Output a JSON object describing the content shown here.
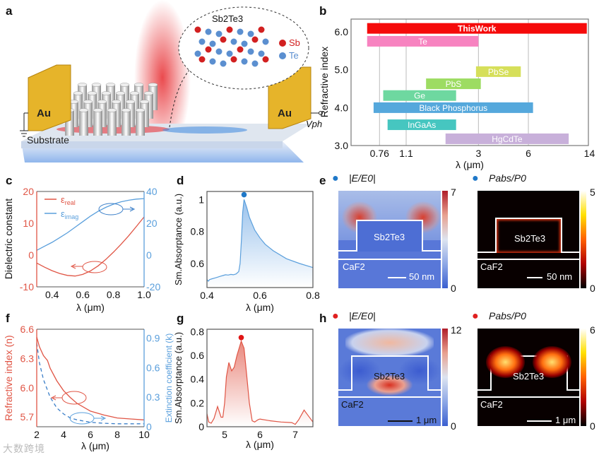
{
  "panels": {
    "a": "a",
    "b": "b",
    "c": "c",
    "d": "d",
    "e": "e",
    "f": "f",
    "g": "g",
    "h": "h"
  },
  "panel_a": {
    "crystal_label": "Sb2Te3",
    "legend_sb": "Sb",
    "legend_te": "Te",
    "electrode_left": "Au",
    "electrode_right": "Au",
    "substrate": "Substrate",
    "vph": "Vph",
    "colors": {
      "sb": "#d22020",
      "te": "#5b8fd0",
      "au": "#e0b020"
    }
  },
  "panel_e": {
    "left_title": "|E/E0|",
    "right_title": "Pabs/P0",
    "left_cbar": [
      "7",
      "0"
    ],
    "right_cbar": [
      "5",
      "0"
    ],
    "material": "Sb2Te3",
    "substrate": "CaF2",
    "scale": "50 nm",
    "dot_color": "#1f78c8"
  },
  "panel_h": {
    "left_title": "|E/E0|",
    "right_title": "Pabs/P0",
    "left_cbar": [
      "12",
      "0"
    ],
    "right_cbar": [
      "6",
      "0"
    ],
    "material": "Sb2Te3",
    "substrate": "CaF2",
    "scale": "1 μm",
    "dot_color": "#e02020"
  },
  "watermark": "大数跨境",
  "chart_data": [
    {
      "id": "b",
      "type": "bar",
      "orientation": "horizontal-range",
      "xlabel": "λ (μm)",
      "ylabel": "Refractive index",
      "xscale": "log",
      "xlim": [
        0.51,
        14
      ],
      "ylim": [
        3.0,
        6.3
      ],
      "xticks": [
        "0.76",
        "1.1",
        "3",
        "6",
        "14"
      ],
      "xtick_values": [
        0.76,
        1.1,
        3,
        6,
        14
      ],
      "yticks": [
        "3.0",
        "4.0",
        "5.0",
        "6.0"
      ],
      "ytick_values": [
        3,
        4,
        5,
        6
      ],
      "grid": "vertical",
      "bars": [
        {
          "name": "ThisWork",
          "lambda": [
            0.64,
            13.5
          ],
          "n": 6.09,
          "color": "#f50a0a"
        },
        {
          "name": "Te",
          "lambda": [
            0.64,
            3.0
          ],
          "n": 5.75,
          "color": "#f783c0"
        },
        {
          "name": "PbSe",
          "lambda": [
            2.9,
            5.4
          ],
          "n": 4.95,
          "color": "#d6df5a"
        },
        {
          "name": "PbS",
          "lambda": [
            1.45,
            3.1
          ],
          "n": 4.63,
          "color": "#9ddc62"
        },
        {
          "name": "Ge",
          "lambda": [
            0.8,
            2.2
          ],
          "n": 4.32,
          "color": "#6ed8a0"
        },
        {
          "name": "Black Phosphorus",
          "lambda": [
            0.7,
            6.4
          ],
          "n": 4.0,
          "color": "#55a8dc"
        },
        {
          "name": "InGaAs",
          "lambda": [
            0.85,
            2.2
          ],
          "n": 3.55,
          "color": "#46c6c0"
        },
        {
          "name": "HgCdTe",
          "lambda": [
            1.9,
            10.5
          ],
          "n": 3.18,
          "color": "#c8b0da"
        }
      ]
    },
    {
      "id": "c",
      "type": "line",
      "xlabel": "λ (μm)",
      "ylabel": "Dielectric constant",
      "xlim": [
        0.3,
        1.0
      ],
      "ylim": [
        -10,
        20
      ],
      "y2lim": [
        -20,
        40
      ],
      "xticks": [
        "0.4",
        "0.6",
        "0.8",
        "1.0"
      ],
      "yticks": [
        "-10",
        "0",
        "10",
        "20"
      ],
      "y2ticks": [
        "-20",
        "0",
        "20",
        "40"
      ],
      "series": [
        {
          "name": "ε",
          "sub": "real",
          "axis": "left",
          "color": "#e05545",
          "x": [
            0.3,
            0.35,
            0.4,
            0.45,
            0.5,
            0.55,
            0.6,
            0.65,
            0.7,
            0.75,
            0.8,
            0.85,
            0.9,
            0.95,
            1.0
          ],
          "y": [
            -2.5,
            -3.8,
            -4.9,
            -5.8,
            -6.4,
            -6.6,
            -6.1,
            -5.0,
            -3.4,
            -1.4,
            0.9,
            3.4,
            6.1,
            9.0,
            12.0
          ]
        },
        {
          "name": "ε",
          "sub": "imag",
          "axis": "right",
          "color": "#5a9fdc",
          "x": [
            0.3,
            0.35,
            0.4,
            0.45,
            0.5,
            0.55,
            0.6,
            0.65,
            0.7,
            0.75,
            0.8,
            0.85,
            0.9,
            0.95,
            1.0
          ],
          "y": [
            3,
            5.5,
            8,
            11,
            14,
            17.5,
            21,
            24.5,
            27.5,
            30,
            32,
            33.5,
            34.5,
            35.2,
            35.5
          ]
        }
      ]
    },
    {
      "id": "d",
      "type": "area",
      "xlabel": "λ (μm)",
      "ylabel": "Sm.Absorptance (a.u.)",
      "xlim": [
        0.4,
        0.8
      ],
      "ylim": [
        0.45,
        1.05
      ],
      "xticks": [
        "0.4",
        "0.6",
        "0.8"
      ],
      "yticks": [
        "0.6",
        "0.8",
        "1"
      ],
      "series": [
        {
          "name": "absorptance",
          "color": "#5a9fdc",
          "x": [
            0.4,
            0.405,
            0.41,
            0.42,
            0.43,
            0.44,
            0.45,
            0.46,
            0.47,
            0.48,
            0.49,
            0.5,
            0.51,
            0.52,
            0.525,
            0.53,
            0.535,
            0.54,
            0.55,
            0.56,
            0.58,
            0.6,
            0.62,
            0.65,
            0.7,
            0.75,
            0.8
          ],
          "y": [
            0.5,
            0.49,
            0.5,
            0.505,
            0.51,
            0.515,
            0.52,
            0.525,
            0.53,
            0.528,
            0.532,
            0.53,
            0.535,
            0.55,
            0.6,
            0.75,
            0.92,
            1.0,
            0.95,
            0.89,
            0.81,
            0.76,
            0.72,
            0.68,
            0.63,
            0.6,
            0.575
          ]
        }
      ],
      "marker": {
        "x": 0.54,
        "y": 1.03,
        "color": "#1f78c8"
      }
    },
    {
      "id": "f",
      "type": "line",
      "xlabel": "λ (μm)",
      "ylabel": "Refractive index (n)",
      "y2label": "Extinction coefficient (k)",
      "xlim": [
        2,
        10
      ],
      "ylim": [
        5.6,
        6.6
      ],
      "y2lim": [
        0,
        0.99
      ],
      "xticks": [
        "2",
        "4",
        "6",
        "8",
        "10"
      ],
      "yticks": [
        "5.7",
        "6.0",
        "6.3",
        "6.6"
      ],
      "y2ticks": [
        "0",
        "0.3",
        "0.6",
        "0.9"
      ],
      "series": [
        {
          "name": "n",
          "axis": "left",
          "style": "solid",
          "color": "#e05545",
          "x": [
            2,
            2.2,
            2.5,
            2.8,
            3,
            3.5,
            4,
            4.5,
            5,
            6,
            7,
            8,
            9,
            10
          ],
          "y": [
            6.52,
            6.42,
            6.33,
            6.28,
            6.2,
            6.07,
            5.97,
            5.9,
            5.84,
            5.76,
            5.72,
            5.69,
            5.68,
            5.67
          ]
        },
        {
          "name": "k",
          "axis": "right",
          "style": "dashed",
          "color": "#3a7ec8",
          "x": [
            2,
            2.2,
            2.5,
            3,
            3.5,
            4,
            4.5,
            5,
            6,
            7,
            8,
            10
          ],
          "y": [
            0.85,
            0.65,
            0.48,
            0.3,
            0.19,
            0.13,
            0.09,
            0.07,
            0.045,
            0.035,
            0.03,
            0.03
          ]
        }
      ]
    },
    {
      "id": "g",
      "type": "area",
      "xlabel": "λ (μm)",
      "ylabel": "Sm.Absorptance (a.u.)",
      "xlim": [
        4.5,
        7.5
      ],
      "ylim": [
        0,
        0.82
      ],
      "xticks": [
        "5",
        "6",
        "7"
      ],
      "yticks": [
        "0",
        "0.2",
        "0.4",
        "0.6",
        "0.8"
      ],
      "series": [
        {
          "name": "absorptance",
          "color": "#e05545",
          "x": [
            4.5,
            4.55,
            4.62,
            4.7,
            4.8,
            4.9,
            4.95,
            5.0,
            5.05,
            5.12,
            5.2,
            5.27,
            5.35,
            5.47,
            5.55,
            5.62,
            5.7,
            5.78,
            5.85,
            5.95,
            6.0,
            6.3,
            6.6,
            6.9,
            7.0,
            7.1,
            7.25,
            7.35,
            7.5
          ],
          "y": [
            0.11,
            0.04,
            0.03,
            0.07,
            0.17,
            0.08,
            0.08,
            0.2,
            0.42,
            0.54,
            0.47,
            0.5,
            0.6,
            0.72,
            0.66,
            0.45,
            0.2,
            0.05,
            0.04,
            0.06,
            0.065,
            0.05,
            0.04,
            0.035,
            0.02,
            0.06,
            0.14,
            0.1,
            0.04
          ]
        }
      ],
      "marker": {
        "x": 5.47,
        "y": 0.75,
        "color": "#e01515"
      }
    }
  ]
}
